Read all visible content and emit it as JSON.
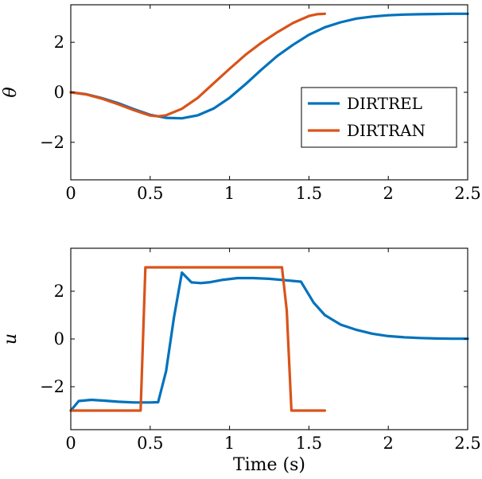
{
  "colors": {
    "DIRTREL": "#0072BD",
    "DIRTRAN": "#D95319"
  },
  "chart_data": [
    {
      "type": "line",
      "title": "",
      "xlabel": "",
      "ylabel": "θ",
      "xlim": [
        0,
        2.5
      ],
      "ylim": [
        -3.5,
        3.5
      ],
      "xticks": [
        0,
        0.5,
        1,
        1.5,
        2,
        2.5
      ],
      "xtick_labels": [
        "0",
        "0.5",
        "1",
        "1.5",
        "2",
        "2.5"
      ],
      "yticks": [
        -2,
        0,
        2
      ],
      "ytick_labels": [
        "−2",
        "0",
        "2"
      ],
      "grid": false,
      "legend": {
        "position": "right",
        "entries": [
          "DIRTREL",
          "DIRTRAN"
        ]
      },
      "series": [
        {
          "name": "DIRTREL",
          "color": "#0072BD",
          "x": [
            0,
            0.1,
            0.2,
            0.3,
            0.4,
            0.5,
            0.6,
            0.7,
            0.8,
            0.9,
            1.0,
            1.1,
            1.2,
            1.3,
            1.4,
            1.5,
            1.6,
            1.7,
            1.8,
            1.9,
            2.0,
            2.1,
            2.2,
            2.3,
            2.4,
            2.5
          ],
          "y": [
            0,
            -0.08,
            -0.24,
            -0.44,
            -0.68,
            -0.9,
            -1.02,
            -1.04,
            -0.92,
            -0.65,
            -0.22,
            0.32,
            0.9,
            1.45,
            1.9,
            2.3,
            2.6,
            2.8,
            2.95,
            3.03,
            3.08,
            3.11,
            3.12,
            3.13,
            3.14,
            3.14
          ]
        },
        {
          "name": "DIRTRAN",
          "color": "#D95319",
          "x": [
            0,
            0.1,
            0.2,
            0.3,
            0.4,
            0.5,
            0.55,
            0.6,
            0.7,
            0.8,
            0.9,
            1.0,
            1.1,
            1.2,
            1.3,
            1.4,
            1.5,
            1.55,
            1.6
          ],
          "y": [
            0,
            -0.09,
            -0.26,
            -0.48,
            -0.72,
            -0.93,
            -0.96,
            -0.92,
            -0.66,
            -0.22,
            0.36,
            0.94,
            1.5,
            1.98,
            2.4,
            2.77,
            3.05,
            3.12,
            3.14
          ]
        }
      ]
    },
    {
      "type": "line",
      "title": "",
      "xlabel": "Time (s)",
      "ylabel": "u",
      "xlim": [
        0,
        2.5
      ],
      "ylim": [
        -3.8,
        3.8
      ],
      "xticks": [
        0,
        0.5,
        1,
        1.5,
        2,
        2.5
      ],
      "xtick_labels": [
        "0",
        "0.5",
        "1",
        "1.5",
        "2",
        "2.5"
      ],
      "yticks": [
        -2,
        0,
        2
      ],
      "ytick_labels": [
        "−2",
        "0",
        "2"
      ],
      "grid": false,
      "series": [
        {
          "name": "DIRTREL",
          "color": "#0072BD",
          "x": [
            0,
            0.05,
            0.13,
            0.2,
            0.3,
            0.4,
            0.5,
            0.55,
            0.6,
            0.65,
            0.7,
            0.76,
            0.82,
            0.88,
            0.95,
            1.05,
            1.15,
            1.25,
            1.35,
            1.45,
            1.53,
            1.6,
            1.7,
            1.8,
            1.9,
            2.0,
            2.1,
            2.2,
            2.3,
            2.4,
            2.5
          ],
          "y": [
            -3.0,
            -2.6,
            -2.55,
            -2.58,
            -2.63,
            -2.66,
            -2.66,
            -2.65,
            -1.35,
            0.9,
            2.78,
            2.37,
            2.34,
            2.38,
            2.47,
            2.55,
            2.55,
            2.52,
            2.46,
            2.4,
            1.52,
            1.0,
            0.6,
            0.38,
            0.22,
            0.12,
            0.07,
            0.04,
            0.02,
            0.01,
            0.01
          ]
        },
        {
          "name": "DIRTRAN",
          "color": "#D95319",
          "x": [
            0,
            0.44,
            0.47,
            1.33,
            1.36,
            1.39,
            1.6
          ],
          "y": [
            -3.0,
            -3.0,
            3.0,
            3.0,
            1.2,
            -3.0,
            -3.0
          ]
        }
      ]
    }
  ]
}
